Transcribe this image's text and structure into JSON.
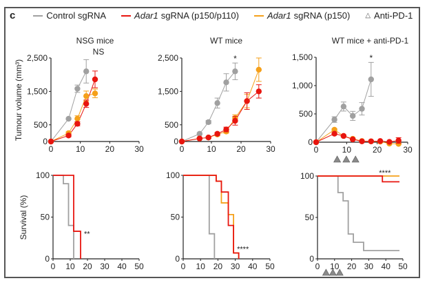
{
  "panel_label": "c",
  "legend": [
    {
      "italic": "",
      "label": "Control sgRNA",
      "color": "#a0a0a0"
    },
    {
      "italic": "Adar1",
      "label": "sgRNA (p150/p110)",
      "color": "#e8150f"
    },
    {
      "italic": "Adar1",
      "label": "sgRNA (p150)",
      "color": "#f5a01a"
    },
    {
      "italic": "",
      "label": "Anti-PD-1",
      "symbol": "triangle"
    }
  ],
  "colors": {
    "control": "#a0a0a0",
    "p150p110": "#e8150f",
    "p150": "#f5a01a",
    "triangle": "#8a8a8a"
  },
  "tumour_ylabel": "Tumour volume (mm³)",
  "survival_ylabel": "Survival (%)",
  "chart_data": [
    {
      "type": "line",
      "title": "NSG mice",
      "annotation": "NS",
      "xlim": [
        0,
        30
      ],
      "xticks": [
        0,
        10,
        20,
        30
      ],
      "ylim": [
        0,
        2500
      ],
      "yticks": [
        0,
        500,
        1500,
        2500
      ],
      "yticklabels": [
        "0",
        "500",
        "1,500",
        "2,500"
      ],
      "series": [
        {
          "name": "Control sgRNA",
          "key": "control",
          "x": [
            0,
            6,
            9,
            12
          ],
          "y": [
            0,
            680,
            1580,
            2100
          ],
          "err": [
            0,
            0,
            110,
            350
          ]
        },
        {
          "name": "Adar1 sgRNA (p150)",
          "key": "p150",
          "x": [
            0,
            6,
            9,
            12,
            15
          ],
          "y": [
            0,
            250,
            680,
            1360,
            1440
          ],
          "err": [
            0,
            40,
            90,
            150,
            130
          ]
        },
        {
          "name": "Adar1 sgRNA (p150/p110)",
          "key": "p150p110",
          "x": [
            0,
            6,
            9,
            12,
            15
          ],
          "y": [
            0,
            180,
            530,
            1130,
            1860
          ],
          "err": [
            0,
            40,
            60,
            110,
            250
          ]
        }
      ]
    },
    {
      "type": "line",
      "title": "WT mice",
      "annotation": "*",
      "annotation_x": 18,
      "xlim": [
        0,
        30
      ],
      "xticks": [
        0,
        10,
        20,
        30
      ],
      "ylim": [
        0,
        2500
      ],
      "yticks": [
        0,
        500,
        1500,
        2500
      ],
      "yticklabels": [
        "0",
        "500",
        "1,500",
        "2,500"
      ],
      "series": [
        {
          "name": "Control sgRNA",
          "key": "control",
          "x": [
            0,
            6,
            9,
            12,
            15,
            18
          ],
          "y": [
            0,
            230,
            580,
            1150,
            1770,
            2100
          ],
          "err": [
            0,
            30,
            50,
            150,
            260,
            250
          ]
        },
        {
          "name": "Adar1 sgRNA (p150)",
          "key": "p150",
          "x": [
            0,
            6,
            9,
            12,
            15,
            18,
            22,
            26
          ],
          "y": [
            0,
            90,
            120,
            210,
            300,
            700,
            1210,
            2150
          ],
          "err": [
            0,
            20,
            30,
            40,
            50,
            100,
            200,
            350
          ]
        },
        {
          "name": "Adar1 sgRNA (p150/p110)",
          "key": "p150p110",
          "x": [
            0,
            6,
            9,
            12,
            15,
            18,
            22,
            26
          ],
          "y": [
            0,
            90,
            120,
            230,
            360,
            620,
            1210,
            1500
          ],
          "err": [
            0,
            20,
            30,
            40,
            70,
            130,
            250,
            200
          ]
        }
      ]
    },
    {
      "type": "line",
      "title": "WT mice + anti-PD-1",
      "annotation": "*",
      "annotation_x": 18,
      "treatment_days": [
        6,
        9,
        12
      ],
      "xlim": [
        0,
        30
      ],
      "xticks": [
        0,
        10,
        20,
        30
      ],
      "ylim": [
        0,
        1500
      ],
      "yticks": [
        0,
        500,
        1000,
        1500
      ],
      "yticklabels": [
        "0",
        "500",
        "1,000",
        "1,500"
      ],
      "series": [
        {
          "name": "Control sgRNA",
          "key": "control",
          "x": [
            0,
            6,
            9,
            12,
            15,
            18
          ],
          "y": [
            0,
            400,
            630,
            465,
            590,
            1110
          ],
          "err": [
            0,
            50,
            80,
            80,
            110,
            300
          ]
        },
        {
          "name": "Adar1 sgRNA (p150)",
          "key": "p150",
          "x": [
            0,
            6,
            9,
            12,
            15,
            18,
            21,
            24,
            27
          ],
          "y": [
            0,
            220,
            110,
            60,
            20,
            15,
            10,
            -25,
            -30
          ],
          "err": [
            0,
            20,
            15,
            10,
            10,
            10,
            10,
            10,
            10
          ]
        },
        {
          "name": "Adar1 sgRNA (p150/p110)",
          "key": "p150p110",
          "x": [
            0,
            6,
            9,
            12,
            15,
            18,
            21,
            24,
            27
          ],
          "y": [
            0,
            150,
            110,
            50,
            15,
            15,
            20,
            5,
            30
          ],
          "err": [
            0,
            20,
            15,
            10,
            10,
            10,
            10,
            10,
            50
          ]
        }
      ]
    },
    {
      "type": "line",
      "subtype": "survival",
      "annotation": "**",
      "annotation_x": 18,
      "annotation_y": 30,
      "xlim": [
        0,
        50
      ],
      "xticks": [
        0,
        10,
        20,
        30,
        40,
        50
      ],
      "ylim": [
        0,
        100
      ],
      "yticks": [
        0,
        50,
        100
      ],
      "yticklabels": [
        "0",
        "50",
        "100"
      ],
      "series": [
        {
          "name": "Control sgRNA",
          "key": "control",
          "x": [
            0,
            6,
            9,
            12
          ],
          "y": [
            100,
            90,
            40,
            0
          ]
        },
        {
          "name": "Adar1 sgRNA (p150/p110)",
          "key": "p150p110",
          "x": [
            0,
            12,
            16
          ],
          "y": [
            100,
            33,
            0
          ]
        }
      ]
    },
    {
      "type": "line",
      "subtype": "survival",
      "annotation": "****",
      "annotation_x": 31,
      "annotation_y": 12,
      "xlim": [
        0,
        50
      ],
      "xticks": [
        0,
        10,
        20,
        30,
        40,
        50
      ],
      "ylim": [
        0,
        100
      ],
      "yticks": [
        0,
        50,
        100
      ],
      "yticklabels": [
        "0",
        "50",
        "100"
      ],
      "series": [
        {
          "name": "Control sgRNA",
          "key": "control",
          "x": [
            0,
            15,
            18
          ],
          "y": [
            100,
            30,
            0
          ]
        },
        {
          "name": "Adar1 sgRNA (p150)",
          "key": "p150",
          "x": [
            0,
            19,
            22,
            26,
            29,
            32
          ],
          "y": [
            100,
            93,
            67,
            53,
            7,
            0
          ]
        },
        {
          "name": "Adar1 sgRNA (p150/p110)",
          "key": "p150p110",
          "x": [
            0,
            19,
            22,
            26,
            29,
            32
          ],
          "y": [
            100,
            93,
            80,
            40,
            7,
            0
          ]
        }
      ]
    },
    {
      "type": "line",
      "subtype": "survival",
      "annotation": "****",
      "annotation_x": 36,
      "annotation_y": 104,
      "treatment_days": [
        5,
        9,
        13
      ],
      "xlim": [
        0,
        50
      ],
      "xticks": [
        0,
        10,
        20,
        30,
        40,
        50
      ],
      "ylim": [
        0,
        100
      ],
      "yticks": [
        0,
        50,
        100
      ],
      "yticklabels": [
        "0",
        "50",
        "100"
      ],
      "series": [
        {
          "name": "Control sgRNA",
          "key": "control",
          "x": [
            0,
            12,
            15,
            18,
            21,
            27,
            48
          ],
          "y": [
            100,
            80,
            70,
            30,
            20,
            10,
            10
          ]
        },
        {
          "name": "Adar1 sgRNA (p150)",
          "key": "p150",
          "x": [
            0,
            48
          ],
          "y": [
            100,
            100
          ]
        },
        {
          "name": "Adar1 sgRNA (p150/p110)",
          "key": "p150p110",
          "x": [
            0,
            38,
            48
          ],
          "y": [
            100,
            93,
            93
          ]
        }
      ]
    }
  ]
}
